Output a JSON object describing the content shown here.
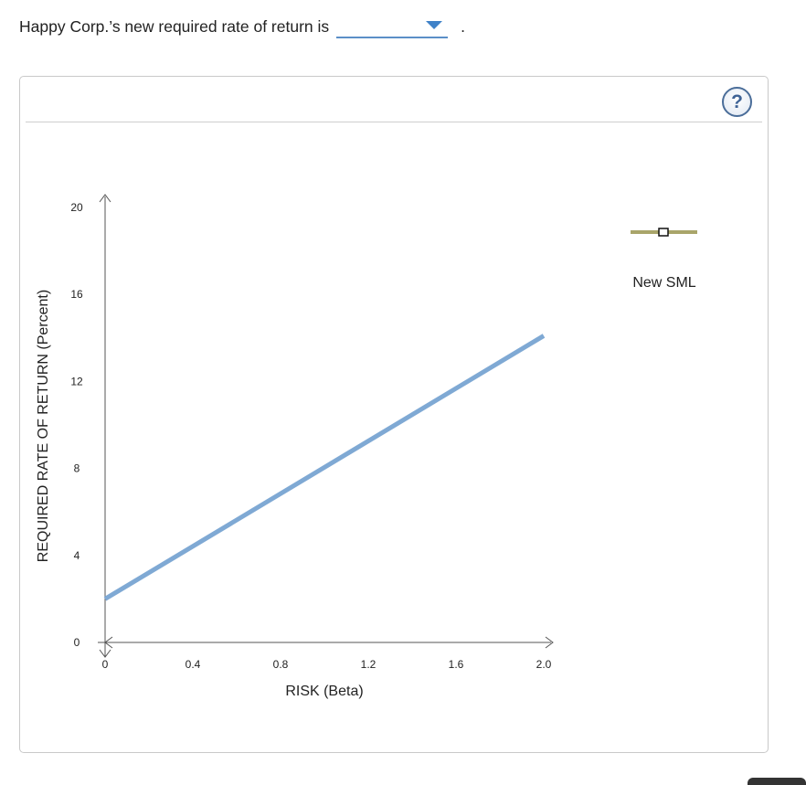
{
  "question": {
    "text": "Happy Corp.’s new required rate of return is",
    "dropdown_value": "",
    "period": "."
  },
  "help": {
    "label": "?"
  },
  "chart_data": {
    "type": "line",
    "xlabel": "RISK (Beta)",
    "ylabel": "REQUIRED RATE OF RETURN (Percent)",
    "xlim": [
      0,
      2.0
    ],
    "ylim": [
      0,
      20
    ],
    "xticks": [
      "0",
      "0.4",
      "0.8",
      "1.2",
      "1.6",
      "2.0"
    ],
    "yticks": [
      "0",
      "4",
      "8",
      "12",
      "16",
      "20"
    ],
    "xtick_values": [
      0,
      0.4,
      0.8,
      1.2,
      1.6,
      2.0
    ],
    "ytick_values": [
      0,
      4,
      8,
      12,
      16,
      20
    ],
    "series": [
      {
        "x": [
          0,
          2.0
        ],
        "y": [
          2,
          14.1
        ],
        "color": "#7fa9d4"
      }
    ],
    "legend": {
      "label": "New SML",
      "color": "#a9a56a",
      "placement": "top-right"
    }
  }
}
